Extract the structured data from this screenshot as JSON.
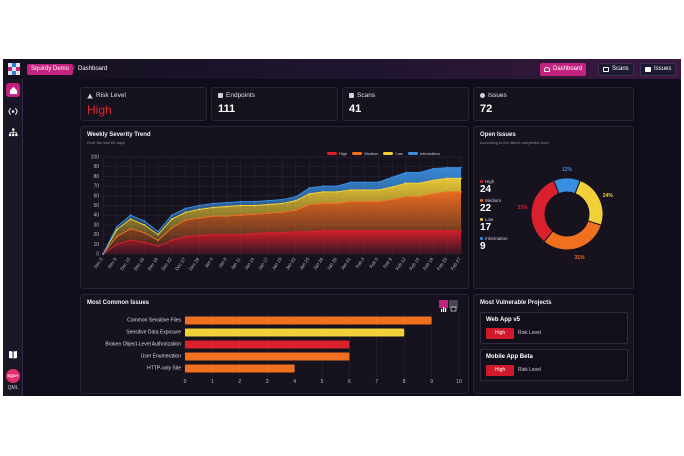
{
  "topbar": {
    "app_name": "Squirdy Demo",
    "separator": "/",
    "page": "Dashboard",
    "nav": [
      {
        "label": "Dashboard",
        "active": true
      },
      {
        "label": "Scans",
        "active": false
      },
      {
        "label": "Issues",
        "active": false
      }
    ]
  },
  "sidebar": {
    "items": [
      "home-icon",
      "api-icon",
      "sitemap-icon"
    ],
    "bottom": [
      "book-icon"
    ],
    "avatar_initials": "SQDY",
    "avatar_label": "QML"
  },
  "stats": [
    {
      "title": "Risk Level",
      "value": "High",
      "icon": "warning-icon"
    },
    {
      "title": "Endpoints",
      "value": "111",
      "icon": "endpoints-icon"
    },
    {
      "title": "Scans",
      "value": "41",
      "icon": "scans-icon"
    },
    {
      "title": "Issues",
      "value": "72",
      "icon": "issues-icon"
    }
  ],
  "trend": {
    "title": "Weekly Severity Trend",
    "subtitle": "Over the last 90 days"
  },
  "open_issues": {
    "title": "Open Issues",
    "subtitle": "According to the latest completed scan",
    "items": [
      {
        "label": "High",
        "count": "24",
        "color": "#d9202c"
      },
      {
        "label": "Medium",
        "count": "22",
        "color": "#f07020"
      },
      {
        "label": "Low",
        "count": "17",
        "color": "#f2d038"
      },
      {
        "label": "Information",
        "count": "9",
        "color": "#3a8ee0"
      }
    ]
  },
  "common_issues": {
    "title": "Most Common Issues"
  },
  "projects": {
    "title": "Most Vulnerable Projects",
    "items": [
      {
        "name": "Web App v5",
        "badge": "High",
        "label": "Risk Level"
      },
      {
        "name": "Mobile App Beta",
        "badge": "High",
        "label": "Risk Level"
      }
    ]
  },
  "chart_data": [
    {
      "type": "area",
      "title": "Weekly Severity Trend",
      "subtitle": "Over the last 90 days",
      "x": [
        "Dec 8",
        "Dec 9",
        "Dec 15",
        "Dec 18",
        "Dec 19",
        "Dec 22",
        "Dec 27",
        "Dec 29",
        "Jan 5",
        "Jan 8",
        "Jan 11",
        "Jan 15",
        "Jan 17",
        "Jan 19",
        "Jan 22",
        "Jan 25",
        "Jan 26",
        "Jan 28",
        "Jan 31",
        "Feb 3",
        "Feb 5",
        "Feb 9",
        "Feb 12",
        "Feb 15",
        "Feb 19",
        "Feb 23",
        "Feb 27"
      ],
      "series": [
        {
          "name": "High",
          "color": "#d9202c",
          "values": [
            0,
            10,
            14,
            12,
            8,
            14,
            18,
            19,
            20,
            20,
            20,
            21,
            22,
            22,
            23,
            23,
            24,
            24,
            24,
            24,
            24,
            24,
            24,
            24,
            24,
            24,
            24
          ]
        },
        {
          "name": "Medium",
          "color": "#f07020",
          "values": [
            0,
            8,
            12,
            10,
            6,
            13,
            17,
            18,
            19,
            19,
            20,
            20,
            20,
            21,
            22,
            28,
            28,
            28,
            30,
            30,
            30,
            32,
            35,
            35,
            38,
            40,
            40
          ]
        },
        {
          "name": "Low",
          "color": "#f2d038",
          "values": [
            0,
            7,
            10,
            8,
            6,
            9,
            8,
            9,
            9,
            10,
            10,
            9,
            9,
            9,
            10,
            11,
            12,
            12,
            12,
            12,
            12,
            13,
            14,
            14,
            14,
            14,
            14
          ]
        },
        {
          "name": "Information",
          "color": "#3a8ee0",
          "values": [
            0,
            3,
            4,
            4,
            3,
            4,
            4,
            4,
            4,
            4,
            4,
            4,
            4,
            4,
            4,
            6,
            6,
            6,
            8,
            8,
            8,
            10,
            11,
            11,
            12,
            11,
            11
          ]
        }
      ],
      "ylim": [
        0,
        100
      ],
      "yticks": [
        0,
        10,
        20,
        30,
        40,
        50,
        60,
        70,
        80,
        90,
        100
      ],
      "stacked": true,
      "grid": true,
      "legend": "top-right"
    },
    {
      "type": "pie",
      "donut": true,
      "labels": [
        "High",
        "Medium",
        "Low",
        "Information"
      ],
      "values": [
        33,
        31,
        24,
        12
      ],
      "value_labels": [
        "33%",
        "31%",
        "24%",
        "12%"
      ],
      "colors": [
        "#d9202c",
        "#f07020",
        "#f2d038",
        "#3a8ee0"
      ]
    },
    {
      "type": "bar",
      "orientation": "horizontal",
      "categories": [
        "Common Sensitive Files",
        "Sensitive Data Exposure",
        "Broken Object-Level Authorization",
        "User Enumeration",
        "HTTP-only Site"
      ],
      "values": [
        9,
        8,
        6,
        6,
        4
      ],
      "colors": [
        "#f07020",
        "#f2d038",
        "#d9202c",
        "#f07020",
        "#f07020"
      ],
      "xlim": [
        0,
        10
      ],
      "xticks": [
        0,
        1,
        2,
        3,
        4,
        5,
        6,
        7,
        8,
        9,
        10
      ]
    }
  ]
}
